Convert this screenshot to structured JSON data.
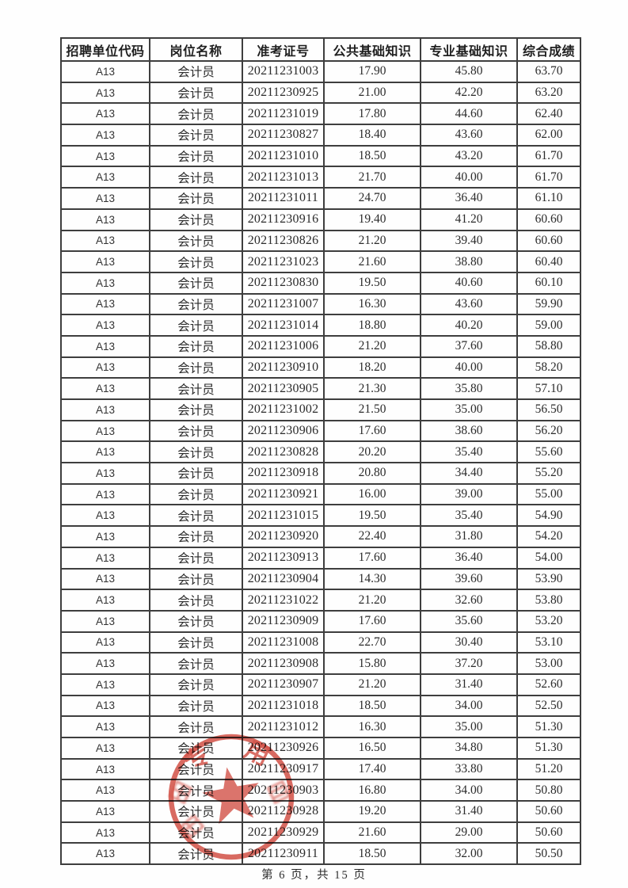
{
  "document": {
    "footer_page_info": "第 6 页，共 15 页"
  },
  "table": {
    "headers": [
      "招聘单位代码",
      "岗位名称",
      "准考证号",
      "公共基础知识",
      "专业基础知识",
      "综合成绩"
    ],
    "rows": [
      [
        "A13",
        "会计员",
        "20211231003",
        "17.90",
        "45.80",
        "63.70"
      ],
      [
        "A13",
        "会计员",
        "20211230925",
        "21.00",
        "42.20",
        "63.20"
      ],
      [
        "A13",
        "会计员",
        "20211231019",
        "17.80",
        "44.60",
        "62.40"
      ],
      [
        "A13",
        "会计员",
        "20211230827",
        "18.40",
        "43.60",
        "62.00"
      ],
      [
        "A13",
        "会计员",
        "20211231010",
        "18.50",
        "43.20",
        "61.70"
      ],
      [
        "A13",
        "会计员",
        "20211231013",
        "21.70",
        "40.00",
        "61.70"
      ],
      [
        "A13",
        "会计员",
        "20211231011",
        "24.70",
        "36.40",
        "61.10"
      ],
      [
        "A13",
        "会计员",
        "20211230916",
        "19.40",
        "41.20",
        "60.60"
      ],
      [
        "A13",
        "会计员",
        "20211230826",
        "21.20",
        "39.40",
        "60.60"
      ],
      [
        "A13",
        "会计员",
        "20211231023",
        "21.60",
        "38.80",
        "60.40"
      ],
      [
        "A13",
        "会计员",
        "20211230830",
        "19.50",
        "40.60",
        "60.10"
      ],
      [
        "A13",
        "会计员",
        "20211231007",
        "16.30",
        "43.60",
        "59.90"
      ],
      [
        "A13",
        "会计员",
        "20211231014",
        "18.80",
        "40.20",
        "59.00"
      ],
      [
        "A13",
        "会计员",
        "20211231006",
        "21.20",
        "37.60",
        "58.80"
      ],
      [
        "A13",
        "会计员",
        "20211230910",
        "18.20",
        "40.00",
        "58.20"
      ],
      [
        "A13",
        "会计员",
        "20211230905",
        "21.30",
        "35.80",
        "57.10"
      ],
      [
        "A13",
        "会计员",
        "20211231002",
        "21.50",
        "35.00",
        "56.50"
      ],
      [
        "A13",
        "会计员",
        "20211230906",
        "17.60",
        "38.60",
        "56.20"
      ],
      [
        "A13",
        "会计员",
        "20211230828",
        "20.20",
        "35.40",
        "55.60"
      ],
      [
        "A13",
        "会计员",
        "20211230918",
        "20.80",
        "34.40",
        "55.20"
      ],
      [
        "A13",
        "会计员",
        "20211230921",
        "16.00",
        "39.00",
        "55.00"
      ],
      [
        "A13",
        "会计员",
        "20211231015",
        "19.50",
        "35.40",
        "54.90"
      ],
      [
        "A13",
        "会计员",
        "20211230920",
        "22.40",
        "31.80",
        "54.20"
      ],
      [
        "A13",
        "会计员",
        "20211230913",
        "17.60",
        "36.40",
        "54.00"
      ],
      [
        "A13",
        "会计员",
        "20211230904",
        "14.30",
        "39.60",
        "53.90"
      ],
      [
        "A13",
        "会计员",
        "20211231022",
        "21.20",
        "32.60",
        "53.80"
      ],
      [
        "A13",
        "会计员",
        "20211230909",
        "17.60",
        "35.60",
        "53.20"
      ],
      [
        "A13",
        "会计员",
        "20211231008",
        "22.70",
        "30.40",
        "53.10"
      ],
      [
        "A13",
        "会计员",
        "20211230908",
        "15.80",
        "37.20",
        "53.00"
      ],
      [
        "A13",
        "会计员",
        "20211230907",
        "21.20",
        "31.40",
        "52.60"
      ],
      [
        "A13",
        "会计员",
        "20211231018",
        "18.50",
        "34.00",
        "52.50"
      ],
      [
        "A13",
        "会计员",
        "20211231012",
        "16.30",
        "35.00",
        "51.30"
      ],
      [
        "A13",
        "会计员",
        "20211230926",
        "16.50",
        "34.80",
        "51.30"
      ],
      [
        "A13",
        "会计员",
        "20211230917",
        "17.40",
        "33.80",
        "51.20"
      ],
      [
        "A13",
        "会计员",
        "20211230903",
        "16.80",
        "34.00",
        "50.80"
      ],
      [
        "A13",
        "会计员",
        "20211230928",
        "19.20",
        "31.40",
        "50.60"
      ],
      [
        "A13",
        "会计员",
        "20211230929",
        "21.60",
        "29.00",
        "50.60"
      ],
      [
        "A13",
        "会计员",
        "20211230911",
        "18.50",
        "32.00",
        "50.50"
      ]
    ]
  },
  "stamp": {
    "chars": [
      "专",
      "用"
    ],
    "color": "#cf4237"
  }
}
